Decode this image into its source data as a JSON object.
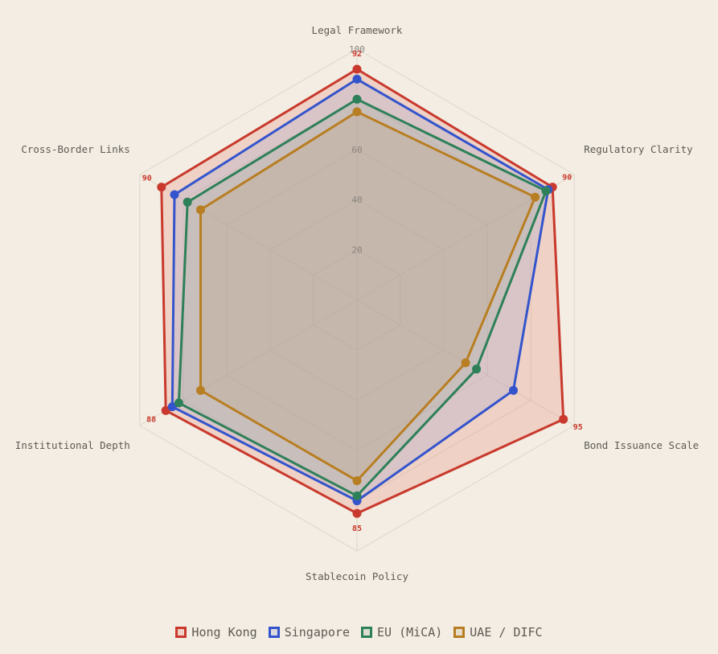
{
  "chart_data": {
    "type": "radar",
    "axes": [
      "Legal Framework",
      "Regulatory Clarity",
      "Bond Issuance Scale",
      "Stablecoin Policy",
      "Institutional Depth",
      "Cross-Border Links"
    ],
    "rmax": 100,
    "ticks": [
      20,
      40,
      60,
      80,
      100
    ],
    "tick_labels": [
      "20",
      "40",
      "60",
      "",
      "100"
    ],
    "series": [
      {
        "name": "Hong Kong",
        "color": "#c9392d",
        "fill": "rgba(232,150,130,0.30)",
        "values": [
          92,
          90,
          95,
          85,
          88,
          90
        ]
      },
      {
        "name": "Singapore",
        "color": "#3454cc",
        "fill": "rgba(140,150,210,0.22)",
        "values": [
          88,
          88,
          72,
          80,
          85,
          84
        ]
      },
      {
        "name": "EU (MiCA)",
        "color": "#2e8059",
        "fill": "rgba(140,170,150,0.22)",
        "values": [
          80,
          87,
          55,
          78,
          82,
          78
        ]
      },
      {
        "name": "UAE / DIFC",
        "color": "#b87e22",
        "fill": "rgba(190,160,120,0.22)",
        "values": [
          75,
          82,
          50,
          72,
          72,
          72
        ]
      }
    ],
    "value_labels": {
      "series": "Hong Kong",
      "values": [
        "92",
        "90",
        "95",
        "85",
        "88",
        "90"
      ]
    },
    "grid": true,
    "legend": "bottom-center"
  }
}
